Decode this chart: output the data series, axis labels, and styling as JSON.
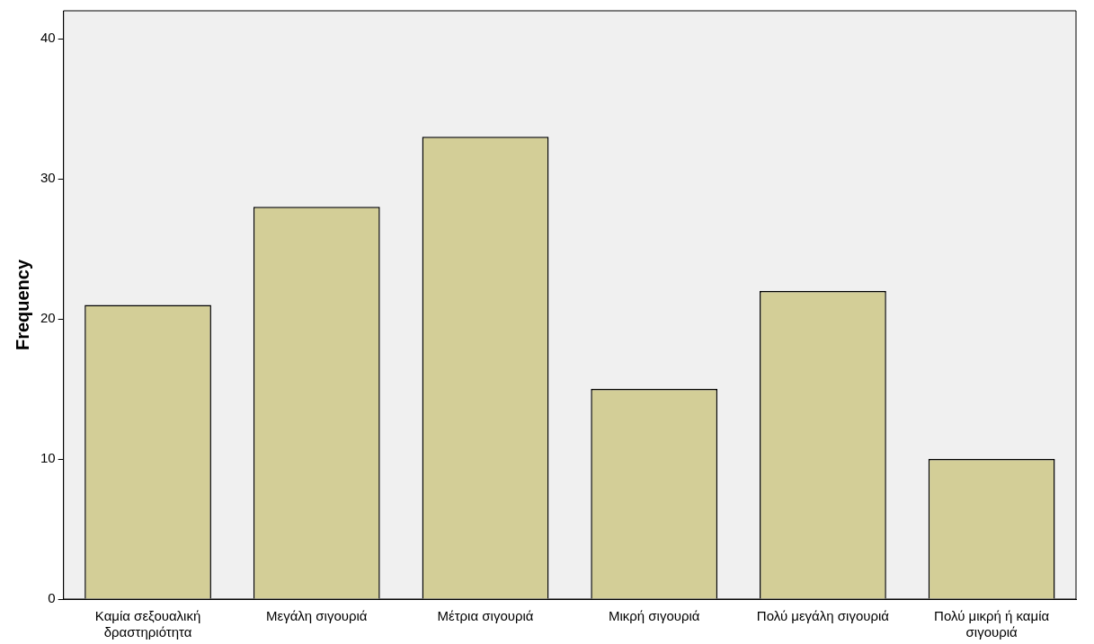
{
  "chart_data": {
    "type": "bar",
    "ylabel": "Frequency",
    "categories": [
      "Καμία σεξουαλική δραστηριότητα",
      "Μεγάλη σιγουριά",
      "Μέτρια σιγουριά",
      "Μικρή σιγουριά",
      "Πολύ μεγάλη σιγουριά",
      "Πολύ μικρή ή καμία σιγουριά"
    ],
    "values": [
      21,
      28,
      33,
      15,
      22,
      10
    ],
    "color": "#d3ce97",
    "ylim": [
      0,
      42
    ],
    "yticks": [
      0,
      10,
      20,
      30,
      40
    ],
    "grid": false,
    "legend": false
  }
}
